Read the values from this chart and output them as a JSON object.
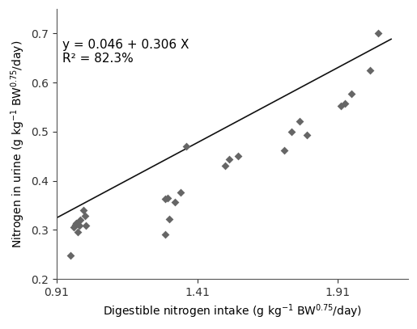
{
  "x_data": [
    0.96,
    0.97,
    0.975,
    0.98,
    0.985,
    0.99,
    0.995,
    1.005,
    1.01,
    1.015,
    1.295,
    1.305,
    1.31,
    1.33,
    1.35,
    1.37,
    1.295,
    1.51,
    1.525,
    1.555,
    1.72,
    1.745,
    1.775,
    1.8,
    1.92,
    1.935,
    1.96,
    2.025,
    2.055
  ],
  "y_data": [
    0.248,
    0.306,
    0.31,
    0.313,
    0.296,
    0.308,
    0.32,
    0.34,
    0.328,
    0.308,
    0.363,
    0.365,
    0.322,
    0.356,
    0.376,
    0.47,
    0.29,
    0.43,
    0.443,
    0.45,
    0.462,
    0.5,
    0.521,
    0.494,
    0.553,
    0.557,
    0.578,
    0.625,
    0.7
  ],
  "slope": 0.306,
  "intercept": 0.046,
  "x_line_start": 0.91,
  "x_line_end": 2.1,
  "equation_text": "y = 0.046 + 0.306 X",
  "r2_text": "R² = 82.3%",
  "xlabel": "Digestible nitrogen intake (g kg$^{-1}$ BW$^{0.75}$/day)",
  "ylabel": "Nitrogen in urine (g kg$^{-1}$ BW$^{0.75}$/day)",
  "xlim": [
    0.91,
    2.16
  ],
  "ylim": [
    0.2,
    0.75
  ],
  "xticks": [
    0.91,
    1.41,
    1.91
  ],
  "yticks": [
    0.2,
    0.3,
    0.4,
    0.5,
    0.6,
    0.7
  ],
  "marker_color": "#666666",
  "line_color": "#111111",
  "marker_size": 5,
  "line_width": 1.2,
  "xlabel_fontsize": 10,
  "ylabel_fontsize": 10,
  "tick_fontsize": 10,
  "annotation_fontsize": 11,
  "fig_width": 5.15,
  "fig_height": 4.07,
  "dpi": 100
}
